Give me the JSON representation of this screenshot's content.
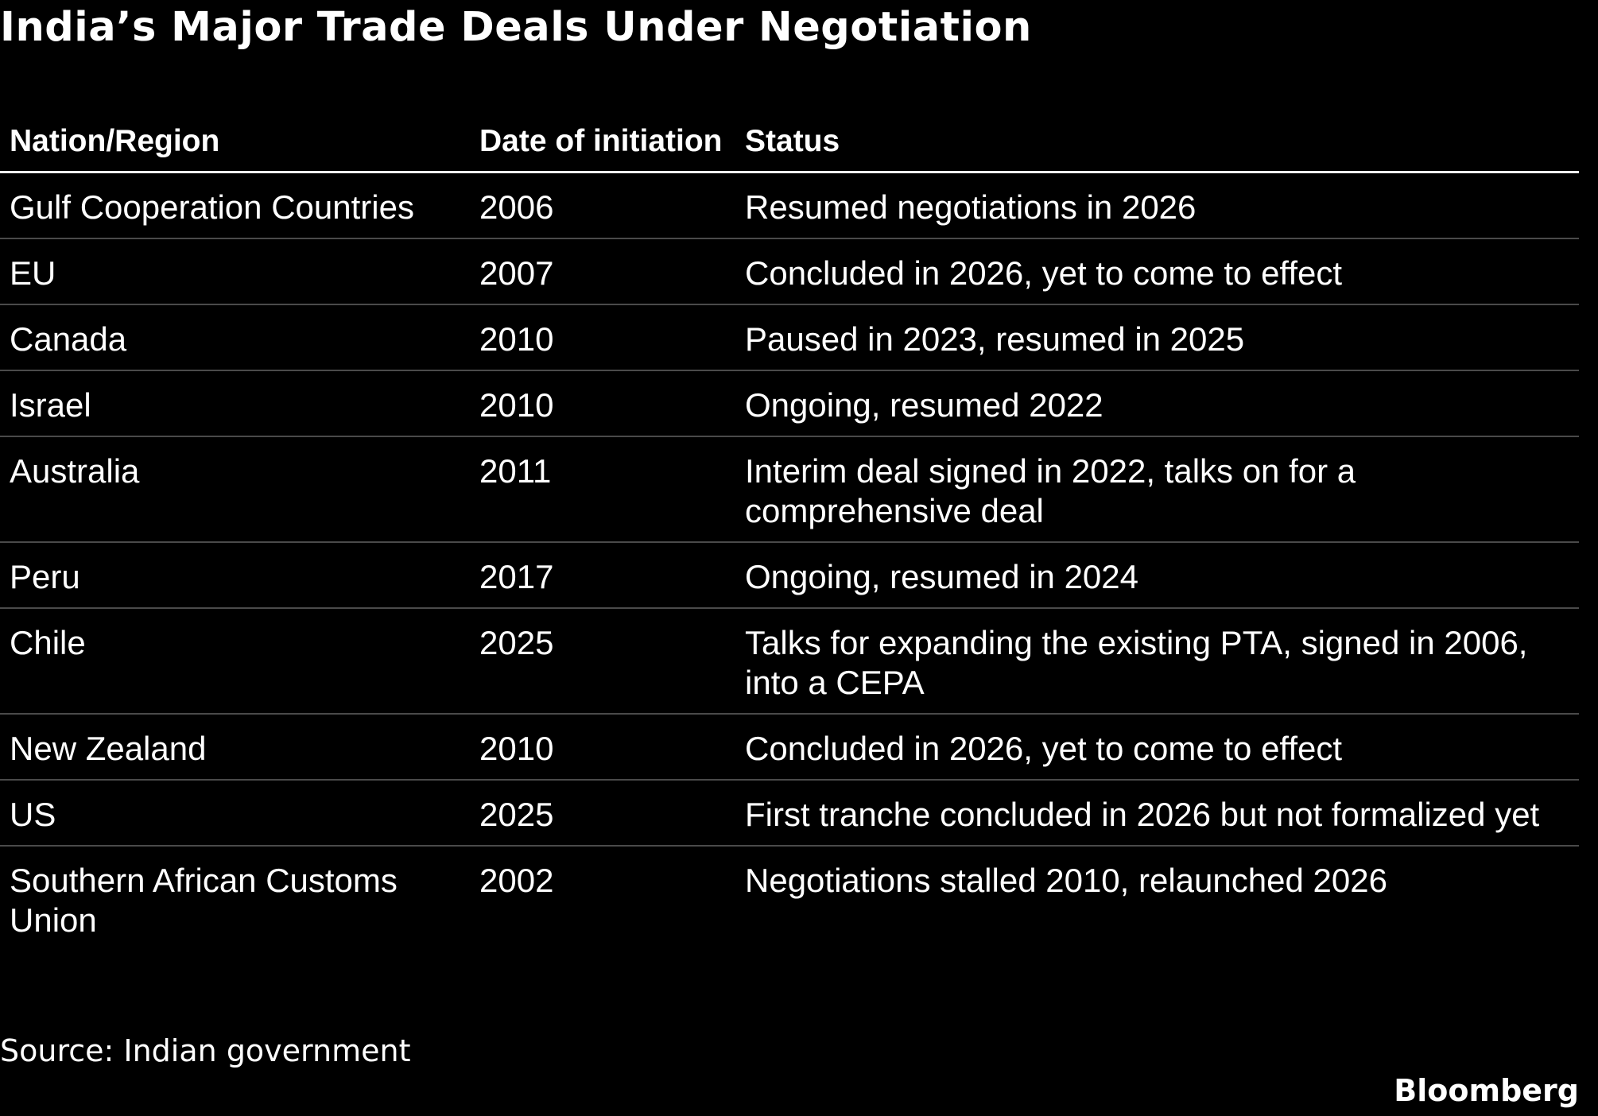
{
  "title": "India’s Major Trade Deals Under Negotiation",
  "table": {
    "headers": [
      "Nation/Region",
      "Date of initiation",
      "Status"
    ],
    "rows": [
      {
        "region": "Gulf Cooperation Countries",
        "date": "2006",
        "status": "Resumed negotiations in 2026"
      },
      {
        "region": "EU",
        "date": "2007",
        "status": "Concluded in 2026, yet to come to effect"
      },
      {
        "region": "Canada",
        "date": "2010",
        "status": "Paused in 2023, resumed in 2025"
      },
      {
        "region": "Israel",
        "date": "2010",
        "status": "Ongoing, resumed 2022"
      },
      {
        "region": "Australia",
        "date": "2011",
        "status": "Interim deal signed in 2022, talks on for a comprehensive deal"
      },
      {
        "region": "Peru",
        "date": "2017",
        "status": "Ongoing, resumed in 2024"
      },
      {
        "region": "Chile",
        "date": "2025",
        "status": "Talks for expanding the existing PTA, signed in 2006, into a CEPA"
      },
      {
        "region": "New Zealand",
        "date": "2010",
        "status": "Concluded in 2026, yet to come to effect"
      },
      {
        "region": "US",
        "date": "2025",
        "status": "First tranche concluded in 2026 but not formalized yet"
      },
      {
        "region": "Southern African Customs Union",
        "date": "2002",
        "status": "Negotiations stalled 2010, relaunched 2026"
      }
    ]
  },
  "source": "Source: Indian government",
  "brand": "Bloomberg"
}
